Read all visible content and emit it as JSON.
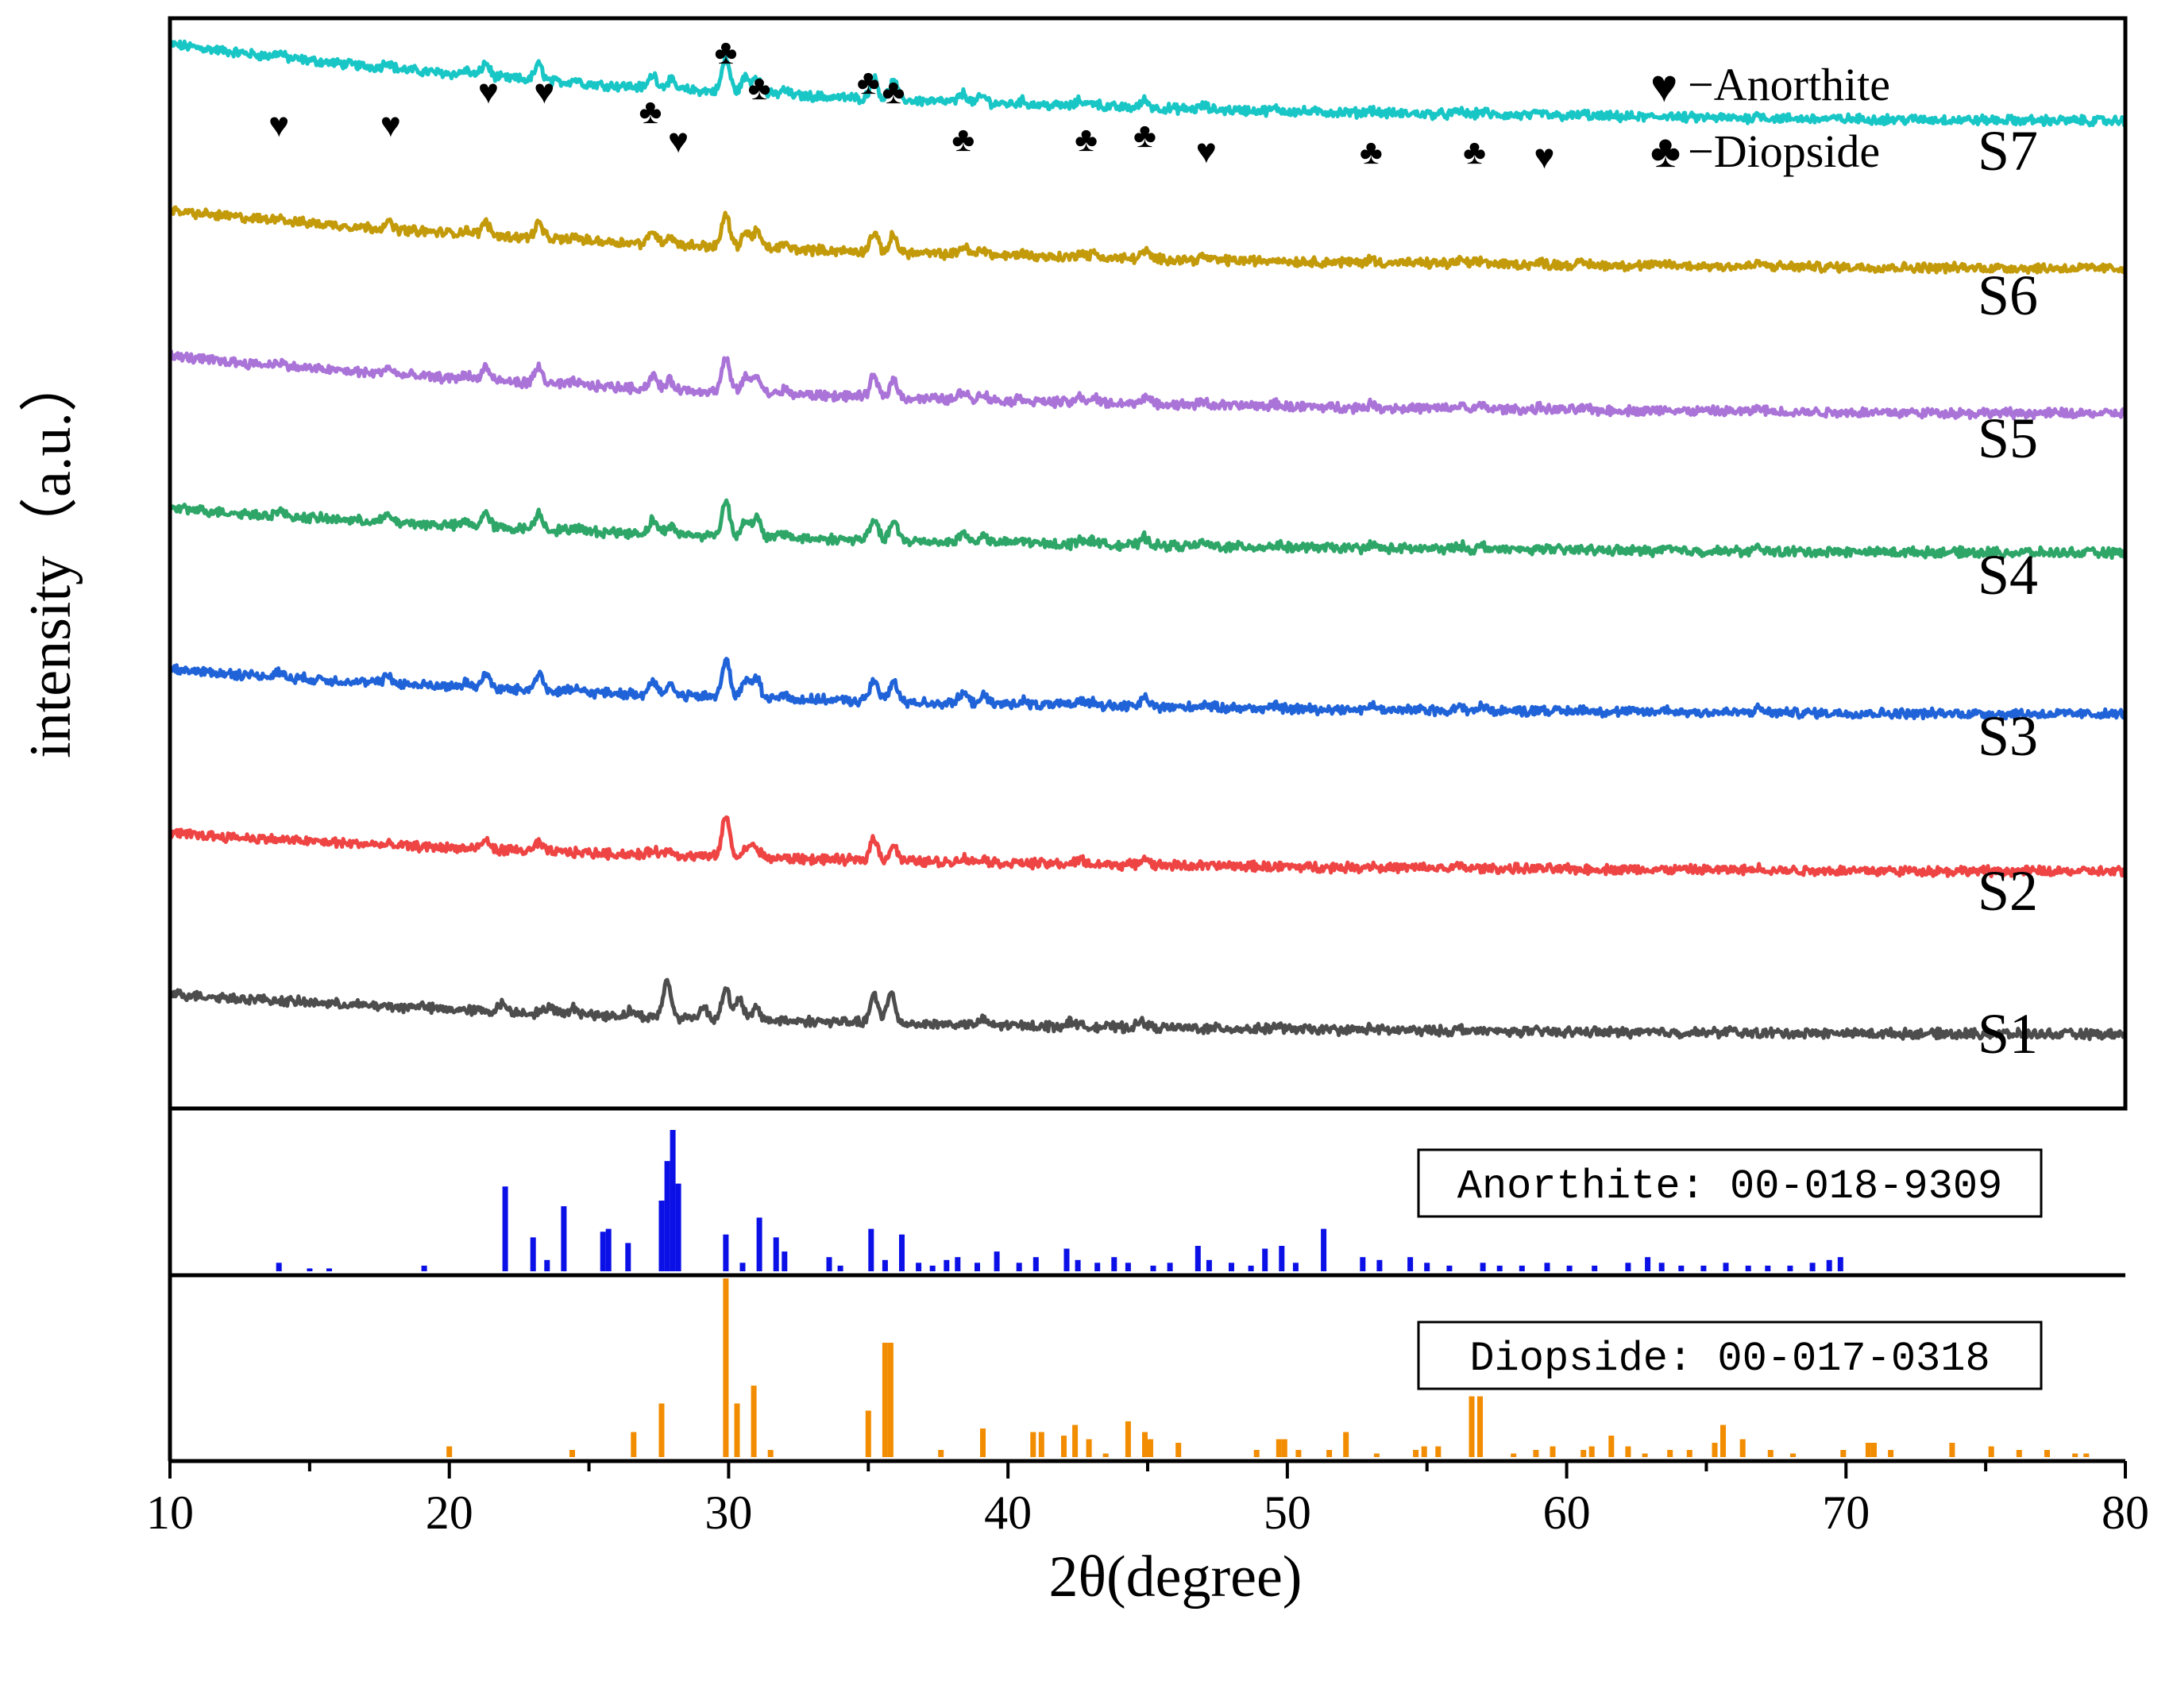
{
  "chart_data": {
    "type": "line",
    "xlabel": "2θ(degree)",
    "ylabel": "intensity（a.u.）",
    "xlim": [
      10,
      80
    ],
    "xticks": [
      10,
      20,
      30,
      40,
      50,
      60,
      70,
      80
    ],
    "minor_xticks": [
      15,
      25,
      35,
      45,
      55,
      65,
      75
    ],
    "legend": {
      "placement": "top-right",
      "entries": [
        {
          "symbol": "♥",
          "label": "−Anorthite"
        },
        {
          "symbol": "♣",
          "label": "−Diopside"
        }
      ]
    },
    "series_common_peaks": [
      {
        "x": 13.9,
        "h": 4
      },
      {
        "x": 17.8,
        "h": 6
      },
      {
        "x": 20.6,
        "h": 4
      },
      {
        "x": 21.3,
        "h": 12
      },
      {
        "x": 23.2,
        "h": 14
      },
      {
        "x": 24.5,
        "h": 3
      },
      {
        "x": 27.3,
        "h": 12
      },
      {
        "x": 27.9,
        "h": 8
      },
      {
        "x": 29.9,
        "h": 30
      },
      {
        "x": 30.6,
        "h": 14
      },
      {
        "x": 31.0,
        "h": 16
      },
      {
        "x": 32.0,
        "h": 4
      },
      {
        "x": 35.2,
        "h": 18
      },
      {
        "x": 35.9,
        "h": 16
      },
      {
        "x": 38.4,
        "h": 8
      },
      {
        "x": 39.1,
        "h": 6
      },
      {
        "x": 40.5,
        "h": 3
      },
      {
        "x": 42.6,
        "h": 5
      },
      {
        "x": 43.1,
        "h": 4
      },
      {
        "x": 44.9,
        "h": 7
      },
      {
        "x": 47.0,
        "h": 3
      },
      {
        "x": 49.6,
        "h": 2
      },
      {
        "x": 53.0,
        "h": 3
      },
      {
        "x": 56.2,
        "h": 3
      },
      {
        "x": 57.0,
        "h": 3
      },
      {
        "x": 59.1,
        "h": 2
      },
      {
        "x": 60.6,
        "h": 2
      },
      {
        "x": 63.6,
        "h": 2
      },
      {
        "x": 66.9,
        "h": 3
      }
    ],
    "series": [
      {
        "name": "S7",
        "color": "#19c6c6",
        "start": 116,
        "end": 44,
        "scale": 1.0
      },
      {
        "name": "S6",
        "color": "#c39a09",
        "start": 96,
        "end": 42,
        "scale": 0.95
      },
      {
        "name": "S5",
        "color": "#aa73d8",
        "start": 94,
        "end": 40,
        "scale": 1.0
      },
      {
        "name": "S4",
        "color": "#2ea668",
        "start": 80,
        "end": 38,
        "scale": 1.05
      },
      {
        "name": "S3",
        "color": "#2063d8",
        "start": 80,
        "end": 38,
        "scale": 1.15
      },
      {
        "name": "S2",
        "color": "#ee4444",
        "start": 72,
        "end": 36,
        "peaks": [
          {
            "x": 21.3,
            "h": 8
          },
          {
            "x": 23.2,
            "h": 7
          },
          {
            "x": 27.3,
            "h": 5
          },
          {
            "x": 27.9,
            "h": 5
          },
          {
            "x": 29.9,
            "h": 36
          },
          {
            "x": 30.7,
            "h": 10
          },
          {
            "x": 31.0,
            "h": 8
          },
          {
            "x": 35.2,
            "h": 20
          },
          {
            "x": 35.9,
            "h": 14
          },
          {
            "x": 38.4,
            "h": 4
          },
          {
            "x": 39.1,
            "h": 4
          },
          {
            "x": 42.6,
            "h": 4
          },
          {
            "x": 44.9,
            "h": 7
          },
          {
            "x": 53.0,
            "h": 2
          },
          {
            "x": 56.2,
            "h": 2
          },
          {
            "x": 66.9,
            "h": 2
          }
        ]
      },
      {
        "name": "S1",
        "color": "#4d4d4d",
        "start": 56,
        "end": 18,
        "peaks": [
          {
            "x": 18.9,
            "h": 3
          },
          {
            "x": 21.9,
            "h": 7
          },
          {
            "x": 23.6,
            "h": 7
          },
          {
            "x": 24.5,
            "h": 6
          },
          {
            "x": 26.5,
            "h": 5
          },
          {
            "x": 27.8,
            "h": 32
          },
          {
            "x": 29.1,
            "h": 10
          },
          {
            "x": 29.9,
            "h": 28
          },
          {
            "x": 30.4,
            "h": 18
          },
          {
            "x": 31.0,
            "h": 10
          },
          {
            "x": 35.2,
            "h": 24
          },
          {
            "x": 35.8,
            "h": 28
          },
          {
            "x": 39.1,
            "h": 4
          },
          {
            "x": 42.3,
            "h": 5
          },
          {
            "x": 44.8,
            "h": 6
          },
          {
            "x": 49.6,
            "h": 3
          },
          {
            "x": 53.0,
            "h": 2
          },
          {
            "x": 56.2,
            "h": 2
          },
          {
            "x": 65.8,
            "h": 2
          }
        ]
      }
    ],
    "markers": [
      {
        "x": 13.9,
        "sym": "♥"
      },
      {
        "x": 17.9,
        "sym": "♥"
      },
      {
        "x": 21.4,
        "sym": "♥"
      },
      {
        "x": 23.4,
        "sym": "♥"
      },
      {
        "x": 27.2,
        "sym": "♣"
      },
      {
        "x": 28.2,
        "sym": "♥"
      },
      {
        "x": 29.9,
        "sym": "♣"
      },
      {
        "x": 31.1,
        "sym": "♣"
      },
      {
        "x": 35.0,
        "sym": "♣"
      },
      {
        "x": 35.9,
        "sym": "♣"
      },
      {
        "x": 38.4,
        "sym": "♣"
      },
      {
        "x": 42.8,
        "sym": "♣"
      },
      {
        "x": 44.9,
        "sym": "♣"
      },
      {
        "x": 47.1,
        "sym": "♥"
      },
      {
        "x": 53.0,
        "sym": "♣"
      },
      {
        "x": 56.7,
        "sym": "♣"
      },
      {
        "x": 59.2,
        "sym": "♥"
      }
    ],
    "references": [
      {
        "label": "Anorthite: 00-018-9309",
        "color": "#0a10e6",
        "peaks": [
          {
            "x": 13.9,
            "h": 6
          },
          {
            "x": 15.0,
            "h": 2
          },
          {
            "x": 15.7,
            "h": 2
          },
          {
            "x": 19.1,
            "h": 4
          },
          {
            "x": 22.0,
            "h": 60
          },
          {
            "x": 23.0,
            "h": 24
          },
          {
            "x": 23.5,
            "h": 8
          },
          {
            "x": 24.1,
            "h": 46
          },
          {
            "x": 25.5,
            "h": 28
          },
          {
            "x": 25.7,
            "h": 30
          },
          {
            "x": 26.4,
            "h": 20
          },
          {
            "x": 27.6,
            "h": 50
          },
          {
            "x": 27.8,
            "h": 78
          },
          {
            "x": 28.0,
            "h": 100
          },
          {
            "x": 28.2,
            "h": 62
          },
          {
            "x": 29.9,
            "h": 26
          },
          {
            "x": 30.5,
            "h": 6
          },
          {
            "x": 31.1,
            "h": 38
          },
          {
            "x": 31.7,
            "h": 24
          },
          {
            "x": 32.0,
            "h": 14
          },
          {
            "x": 33.6,
            "h": 10
          },
          {
            "x": 34.0,
            "h": 4
          },
          {
            "x": 35.1,
            "h": 30
          },
          {
            "x": 35.6,
            "h": 8
          },
          {
            "x": 36.2,
            "h": 26
          },
          {
            "x": 36.8,
            "h": 6
          },
          {
            "x": 37.3,
            "h": 4
          },
          {
            "x": 37.8,
            "h": 8
          },
          {
            "x": 38.2,
            "h": 10
          },
          {
            "x": 38.9,
            "h": 6
          },
          {
            "x": 39.6,
            "h": 14
          },
          {
            "x": 40.4,
            "h": 6
          },
          {
            "x": 41.0,
            "h": 10
          },
          {
            "x": 42.1,
            "h": 16
          },
          {
            "x": 42.5,
            "h": 8
          },
          {
            "x": 43.2,
            "h": 6
          },
          {
            "x": 43.8,
            "h": 10
          },
          {
            "x": 44.3,
            "h": 6
          },
          {
            "x": 45.2,
            "h": 4
          },
          {
            "x": 45.8,
            "h": 6
          },
          {
            "x": 46.8,
            "h": 18
          },
          {
            "x": 47.2,
            "h": 8
          },
          {
            "x": 48.0,
            "h": 6
          },
          {
            "x": 48.7,
            "h": 4
          },
          {
            "x": 49.2,
            "h": 16
          },
          {
            "x": 49.8,
            "h": 18
          },
          {
            "x": 50.3,
            "h": 6
          },
          {
            "x": 51.3,
            "h": 30
          },
          {
            "x": 52.7,
            "h": 10
          },
          {
            "x": 53.3,
            "h": 8
          },
          {
            "x": 54.4,
            "h": 10
          },
          {
            "x": 55.0,
            "h": 6
          },
          {
            "x": 55.8,
            "h": 4
          },
          {
            "x": 57.0,
            "h": 6
          },
          {
            "x": 57.6,
            "h": 4
          },
          {
            "x": 58.4,
            "h": 4
          },
          {
            "x": 59.3,
            "h": 6
          },
          {
            "x": 60.1,
            "h": 4
          },
          {
            "x": 61.0,
            "h": 4
          },
          {
            "x": 62.2,
            "h": 6
          },
          {
            "x": 62.9,
            "h": 10
          },
          {
            "x": 63.4,
            "h": 6
          },
          {
            "x": 64.1,
            "h": 4
          },
          {
            "x": 64.9,
            "h": 4
          },
          {
            "x": 65.7,
            "h": 6
          },
          {
            "x": 66.5,
            "h": 4
          },
          {
            "x": 67.2,
            "h": 4
          },
          {
            "x": 68.0,
            "h": 4
          },
          {
            "x": 68.8,
            "h": 6
          },
          {
            "x": 69.4,
            "h": 8
          },
          {
            "x": 69.8,
            "h": 10
          }
        ]
      },
      {
        "label": "Diopside: 00-017-0318",
        "color": "#f28c00",
        "peaks": [
          {
            "x": 20.0,
            "h": 6
          },
          {
            "x": 24.4,
            "h": 4
          },
          {
            "x": 26.6,
            "h": 14
          },
          {
            "x": 27.6,
            "h": 30
          },
          {
            "x": 29.9,
            "h": 100
          },
          {
            "x": 30.3,
            "h": 30
          },
          {
            "x": 30.9,
            "h": 40
          },
          {
            "x": 31.5,
            "h": 4
          },
          {
            "x": 35.0,
            "h": 26
          },
          {
            "x": 35.6,
            "h": 64
          },
          {
            "x": 35.8,
            "h": 64
          },
          {
            "x": 37.6,
            "h": 4
          },
          {
            "x": 39.1,
            "h": 16
          },
          {
            "x": 40.9,
            "h": 14
          },
          {
            "x": 41.2,
            "h": 14
          },
          {
            "x": 42.0,
            "h": 12
          },
          {
            "x": 42.4,
            "h": 18
          },
          {
            "x": 42.9,
            "h": 10
          },
          {
            "x": 43.5,
            "h": 2
          },
          {
            "x": 44.3,
            "h": 20
          },
          {
            "x": 44.9,
            "h": 14
          },
          {
            "x": 45.1,
            "h": 10
          },
          {
            "x": 46.1,
            "h": 8
          },
          {
            "x": 48.9,
            "h": 4
          },
          {
            "x": 49.7,
            "h": 10
          },
          {
            "x": 49.9,
            "h": 10
          },
          {
            "x": 50.4,
            "h": 4
          },
          {
            "x": 51.5,
            "h": 4
          },
          {
            "x": 52.1,
            "h": 14
          },
          {
            "x": 53.2,
            "h": 2
          },
          {
            "x": 54.6,
            "h": 4
          },
          {
            "x": 54.9,
            "h": 6
          },
          {
            "x": 55.4,
            "h": 6
          },
          {
            "x": 56.6,
            "h": 34
          },
          {
            "x": 56.9,
            "h": 34
          },
          {
            "x": 58.1,
            "h": 2
          },
          {
            "x": 58.9,
            "h": 4
          },
          {
            "x": 59.5,
            "h": 6
          },
          {
            "x": 60.6,
            "h": 4
          },
          {
            "x": 60.9,
            "h": 6
          },
          {
            "x": 61.6,
            "h": 12
          },
          {
            "x": 62.2,
            "h": 6
          },
          {
            "x": 62.8,
            "h": 2
          },
          {
            "x": 63.7,
            "h": 4
          },
          {
            "x": 64.4,
            "h": 4
          },
          {
            "x": 65.3,
            "h": 8
          },
          {
            "x": 65.6,
            "h": 18
          },
          {
            "x": 66.3,
            "h": 10
          },
          {
            "x": 67.3,
            "h": 4
          },
          {
            "x": 68.1,
            "h": 2
          },
          {
            "x": 69.9,
            "h": 4
          },
          {
            "x": 70.8,
            "h": 8
          },
          {
            "x": 71.0,
            "h": 8
          },
          {
            "x": 71.6,
            "h": 4
          },
          {
            "x": 73.8,
            "h": 8
          },
          {
            "x": 75.2,
            "h": 6
          },
          {
            "x": 76.2,
            "h": 4
          },
          {
            "x": 77.2,
            "h": 4
          },
          {
            "x": 78.2,
            "h": 2
          },
          {
            "x": 78.6,
            "h": 2
          }
        ]
      }
    ]
  }
}
